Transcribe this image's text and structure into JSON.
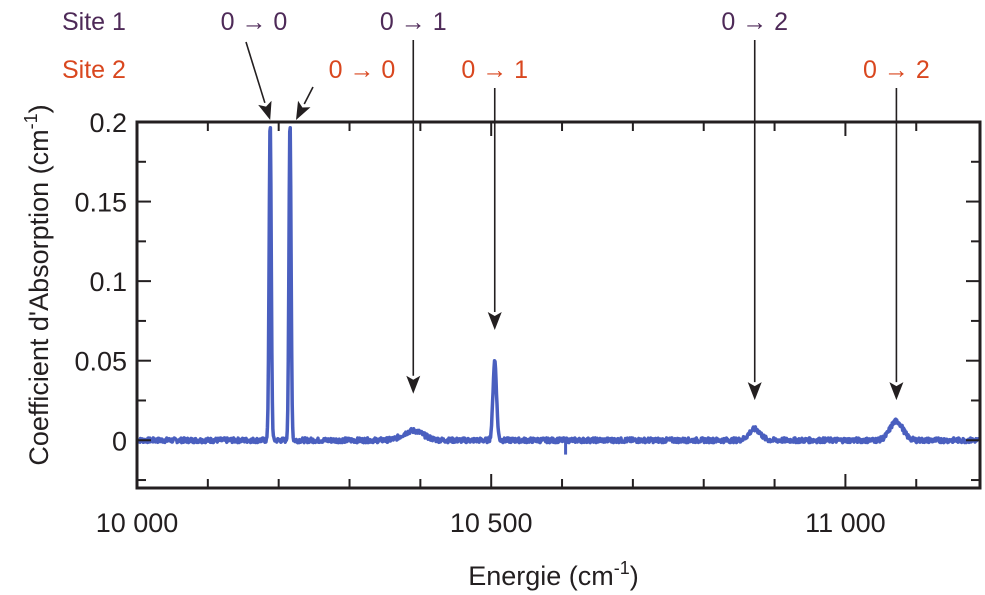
{
  "chart_data": {
    "type": "line",
    "title": "",
    "xlabel": "Energie (cm",
    "xlabel_sup": "-1",
    "xlabel_suffix": ")",
    "ylabel": "Coefficient d'Absorption (cm",
    "ylabel_sup": "-1",
    "ylabel_suffix": ")",
    "xlim": [
      10000,
      11190
    ],
    "ylim": [
      -0.03,
      0.2
    ],
    "x_ticks": [
      {
        "value": 10000,
        "label": "10 000"
      },
      {
        "value": 10500,
        "label": "10 500"
      },
      {
        "value": 11000,
        "label": "11 000"
      }
    ],
    "x_minor_step": 100,
    "y_ticks": [
      {
        "value": 0,
        "label": "0"
      },
      {
        "value": 0.05,
        "label": "0.05"
      },
      {
        "value": 0.1,
        "label": "0.1"
      },
      {
        "value": 0.15,
        "label": "0.15"
      },
      {
        "value": 0.2,
        "label": "0.2"
      }
    ],
    "y_minor_step": 0.025,
    "grid": false,
    "series": [
      {
        "color": "#4a5fbf",
        "baseline": 0.0,
        "noise": 0.0015,
        "peaks": [
          {
            "x": 10188,
            "height": 0.2,
            "width": 1.5
          },
          {
            "x": 10216,
            "height": 0.2,
            "width": 1.5
          },
          {
            "x": 10390,
            "height": 0.006,
            "width": 14
          },
          {
            "x": 10505,
            "height": 0.05,
            "width": 2.5
          },
          {
            "x": 10872,
            "height": 0.007,
            "width": 8
          },
          {
            "x": 11072,
            "height": 0.012,
            "width": 9
          }
        ]
      }
    ],
    "legend": [
      {
        "label": "Site 1",
        "color": "#4e2a58"
      },
      {
        "label": "Site 2",
        "color": "#d9471f"
      }
    ],
    "annotations": [
      {
        "text": "0 → 0",
        "site": 1,
        "color": "#4e2a58",
        "x": 10188,
        "y": 0.2
      },
      {
        "text": "0 → 1",
        "site": 1,
        "color": "#4e2a58",
        "x": 10390,
        "y": 0.028
      },
      {
        "text": "0 → 2",
        "site": 1,
        "color": "#4e2a58",
        "x": 10872,
        "y": 0.024
      },
      {
        "text": "0 → 0",
        "site": 2,
        "color": "#d9471f",
        "x": 10216,
        "y": 0.2
      },
      {
        "text": "0 → 1",
        "site": 2,
        "color": "#d9471f",
        "x": 10505,
        "y": 0.068
      },
      {
        "text": "0 → 2",
        "site": 2,
        "color": "#d9471f",
        "x": 11072,
        "y": 0.024
      }
    ]
  }
}
